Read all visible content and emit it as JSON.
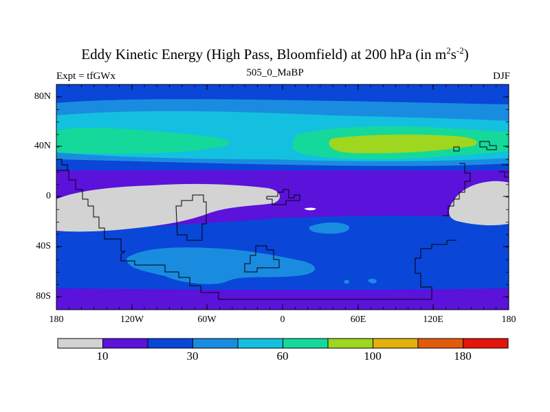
{
  "title": {
    "main": "Eddy Kinetic Energy (High Pass, Bloomfield) at 200 hPa (in m",
    "sup1": "2",
    "mid": "s",
    "sup2": "-2",
    "close": ")"
  },
  "left_string": "Expt = tfGWx",
  "center_string": "505_0_MaBP",
  "right_string": "DJF",
  "y_ticks": [
    "80N",
    "40N",
    "0",
    "40S",
    "80S"
  ],
  "x_ticks": [
    "180",
    "120W",
    "60W",
    "0",
    "60E",
    "120E",
    "180"
  ],
  "colorbar": {
    "colors": [
      "#d3d3d3",
      "#5b12db",
      "#0a46d8",
      "#1a8ce0",
      "#14c0e0",
      "#14d99a",
      "#9fd61f",
      "#e2b10d",
      "#e25b0d",
      "#e3150d"
    ],
    "labels": [
      "10",
      "30",
      "60",
      "100",
      "180"
    ]
  }
}
